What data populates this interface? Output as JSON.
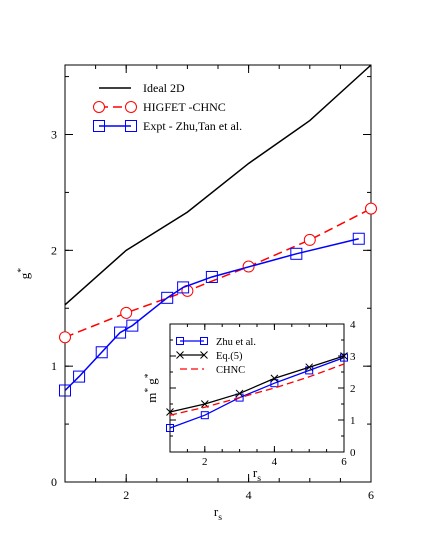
{
  "chart_data": [
    {
      "type": "line",
      "xlabel": "r",
      "xlabel_sub": "s",
      "ylabel": "g",
      "ylabel_sup": "*",
      "xlim": [
        1,
        6
      ],
      "ylim": [
        0,
        3.6
      ],
      "xticks": [
        2,
        4,
        6
      ],
      "yticks": [
        0,
        1,
        2,
        3
      ],
      "legend_position": "top-left",
      "series": [
        {
          "name": "Ideal 2D",
          "color": "#000000",
          "style": "solid",
          "marker": "none",
          "x": [
            1.0,
            2.0,
            3.0,
            4.0,
            5.0,
            6.0
          ],
          "y": [
            1.53,
            2.0,
            2.33,
            2.75,
            3.12,
            3.6
          ]
        },
        {
          "name": "HIGFET -CHNC",
          "color": "#ff0000",
          "style": "dashed",
          "marker": "circle",
          "x": [
            1.0,
            2.0,
            3.0,
            4.0,
            5.0,
            6.0
          ],
          "y": [
            1.25,
            1.46,
            1.65,
            1.86,
            2.09,
            2.36
          ]
        },
        {
          "name": "Expt - Zhu,Tan et al.",
          "color": "#0000ff",
          "style": "solid",
          "marker": "square",
          "x": [
            1.0,
            1.23,
            1.6,
            1.9,
            2.1,
            2.67,
            2.93,
            3.4,
            4.78,
            5.8
          ],
          "y": [
            0.79,
            0.91,
            1.12,
            1.29,
            1.35,
            1.59,
            1.68,
            1.77,
            1.97,
            2.1
          ]
        }
      ]
    },
    {
      "type": "line",
      "xlabel": "r",
      "xlabel_sub": "s",
      "ylabel": "m",
      "ylabel_sup": "*",
      "ylabel2": "g",
      "ylabel2_sup": "*",
      "xlim": [
        1,
        6
      ],
      "ylim": [
        0,
        4
      ],
      "xticks": [
        2,
        4,
        6
      ],
      "yticks": [
        0,
        1,
        2,
        3,
        4
      ],
      "legend_position": "top-left",
      "series": [
        {
          "name": "Zhu et al.",
          "color": "#0000ff",
          "style": "solid",
          "marker": "square",
          "x": [
            1.0,
            2.0,
            3.0,
            4.0,
            5.0,
            6.0
          ],
          "y": [
            0.75,
            1.15,
            1.7,
            2.15,
            2.55,
            2.95
          ]
        },
        {
          "name": "Eq.(5)",
          "color": "#000000",
          "style": "solid",
          "marker": "x",
          "x": [
            1.0,
            2.0,
            3.0,
            4.0,
            5.0,
            6.0
          ],
          "y": [
            1.25,
            1.5,
            1.83,
            2.3,
            2.65,
            3.0
          ]
        },
        {
          "name": "CHNC",
          "color": "#ff0000",
          "style": "dashed",
          "marker": "none",
          "x": [
            1.0,
            2.0,
            3.0,
            4.0,
            5.0,
            6.0
          ],
          "y": [
            1.15,
            1.4,
            1.7,
            2.0,
            2.35,
            2.75
          ]
        }
      ]
    }
  ]
}
